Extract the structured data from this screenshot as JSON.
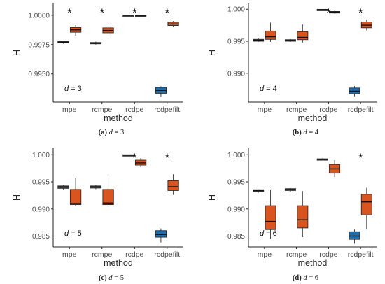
{
  "colors": {
    "blue": "#1f6fb0",
    "orange": "#d9541e",
    "dark": "#3c3c3c",
    "axis": "#222222",
    "text": "#2b2b2b"
  },
  "chart_data": [
    {
      "type": "boxplot",
      "caption_label": "(a)",
      "caption_text": "d = 3",
      "xlabel": "method",
      "ylabel": "H",
      "annotation": "d = 3",
      "ylim": [
        0.9926,
        1.001
      ],
      "yticks": [
        0.995,
        0.9975,
        1.0
      ],
      "ytick_labels": [
        "0.9950",
        "0.9975",
        "1.0000"
      ],
      "categories": [
        "mpe",
        "rcmpe",
        "rcdpe",
        "rcdpefilt"
      ],
      "boxes": [
        {
          "cat": "mpe",
          "color": "dark",
          "q1": 0.99764,
          "med": 0.9977,
          "q3": 0.99776,
          "wlo": 0.99758,
          "whi": 0.99782
        },
        {
          "cat": "mpe",
          "color": "orange",
          "q1": 0.99855,
          "med": 0.99875,
          "q3": 0.99895,
          "wlo": 0.99825,
          "whi": 0.99915
        },
        {
          "cat": "rcmpe",
          "color": "dark",
          "q1": 0.99756,
          "med": 0.99762,
          "q3": 0.99768,
          "wlo": 0.9975,
          "whi": 0.99775
        },
        {
          "cat": "rcmpe",
          "color": "orange",
          "q1": 0.9985,
          "med": 0.9987,
          "q3": 0.99892,
          "wlo": 0.99818,
          "whi": 0.9991
        },
        {
          "cat": "rcdpe",
          "color": "dark",
          "q1": 0.99998,
          "med": 1.0,
          "q3": 1.00002,
          "wlo": 0.99996,
          "whi": 1.00003
        },
        {
          "cat": "rcdpe",
          "color": "dark",
          "q1": 0.99996,
          "med": 0.99998,
          "q3": 1.0,
          "wlo": 0.99994,
          "whi": 1.00001
        },
        {
          "cat": "rcdpefilt",
          "color": "blue",
          "q1": 0.99335,
          "med": 0.9936,
          "q3": 0.99385,
          "wlo": 0.99305,
          "whi": 0.99395
        },
        {
          "cat": "rcdpefilt",
          "color": "orange",
          "q1": 0.99912,
          "med": 0.99925,
          "q3": 0.9994,
          "wlo": 0.999,
          "whi": 0.9995
        }
      ],
      "stars": [
        "mpe",
        "rcmpe",
        "rcdpe",
        "rcdpefilt"
      ]
    },
    {
      "type": "boxplot",
      "caption_label": "(b)",
      "caption_text": "d = 4",
      "xlabel": "method",
      "ylabel": "H",
      "annotation": "d = 4",
      "ylim": [
        0.9855,
        1.0009
      ],
      "yticks": [
        0.99,
        0.995,
        1.0
      ],
      "ytick_labels": [
        "0.990",
        "0.995",
        "1.000"
      ],
      "categories": [
        "mpe",
        "rcmpe",
        "rcdpe",
        "rcdpefilt"
      ],
      "boxes": [
        {
          "cat": "mpe",
          "color": "dark",
          "q1": 0.995,
          "med": 0.99515,
          "q3": 0.9953,
          "wlo": 0.9949,
          "whi": 0.99545
        },
        {
          "cat": "mpe",
          "color": "orange",
          "q1": 0.9953,
          "med": 0.9957,
          "q3": 0.9966,
          "wlo": 0.9949,
          "whi": 0.9979
        },
        {
          "cat": "rcmpe",
          "color": "dark",
          "q1": 0.995,
          "med": 0.99512,
          "q3": 0.99525,
          "wlo": 0.9949,
          "whi": 0.99535
        },
        {
          "cat": "rcmpe",
          "color": "orange",
          "q1": 0.99525,
          "med": 0.9956,
          "q3": 0.9965,
          "wlo": 0.9948,
          "whi": 0.9976
        },
        {
          "cat": "rcdpe",
          "color": "dark",
          "q1": 0.99982,
          "med": 0.9999,
          "q3": 0.99998,
          "wlo": 0.99975,
          "whi": 1.00002
        },
        {
          "cat": "rcdpe",
          "color": "dark",
          "q1": 0.9994,
          "med": 0.99955,
          "q3": 0.99965,
          "wlo": 0.9993,
          "whi": 0.99975
        },
        {
          "cat": "rcdpefilt",
          "color": "blue",
          "q1": 0.9868,
          "med": 0.9872,
          "q3": 0.9877,
          "wlo": 0.9864,
          "whi": 0.988
        },
        {
          "cat": "rcdpefilt",
          "color": "orange",
          "q1": 0.9971,
          "med": 0.9975,
          "q3": 0.998,
          "wlo": 0.9967,
          "whi": 0.9984
        }
      ],
      "stars": [
        "rcdpe",
        "rcdpefilt"
      ]
    },
    {
      "type": "boxplot",
      "caption_label": "(c)",
      "caption_text": "d = 5",
      "xlabel": "method",
      "ylabel": "H",
      "annotation": "d = 5",
      "ylim": [
        0.983,
        1.0012
      ],
      "yticks": [
        0.985,
        0.99,
        0.995,
        1.0
      ],
      "ytick_labels": [
        "0.985",
        "0.990",
        "0.995",
        "1.000"
      ],
      "categories": [
        "mpe",
        "rcmpe",
        "rcdpe",
        "rcdpefilt"
      ],
      "boxes": [
        {
          "cat": "mpe",
          "color": "dark",
          "q1": 0.9938,
          "med": 0.99405,
          "q3": 0.99425,
          "wlo": 0.9936,
          "whi": 0.9944
        },
        {
          "cat": "mpe",
          "color": "orange",
          "q1": 0.9908,
          "med": 0.991,
          "q3": 0.9936,
          "wlo": 0.9906,
          "whi": 0.9957
        },
        {
          "cat": "rcmpe",
          "color": "dark",
          "q1": 0.99385,
          "med": 0.99405,
          "q3": 0.99425,
          "wlo": 0.99365,
          "whi": 0.9944
        },
        {
          "cat": "rcmpe",
          "color": "orange",
          "q1": 0.9908,
          "med": 0.9911,
          "q3": 0.9936,
          "wlo": 0.9906,
          "whi": 0.9957
        },
        {
          "cat": "rcdpe",
          "color": "dark",
          "q1": 0.9999,
          "med": 0.99995,
          "q3": 1.0,
          "wlo": 0.99985,
          "whi": 1.00003
        },
        {
          "cat": "rcdpe",
          "color": "orange",
          "q1": 0.9981,
          "med": 0.9985,
          "q3": 0.999,
          "wlo": 0.9977,
          "whi": 0.9994
        },
        {
          "cat": "rcdpefilt",
          "color": "blue",
          "q1": 0.9848,
          "med": 0.9853,
          "q3": 0.986,
          "wlo": 0.9838,
          "whi": 0.9864
        },
        {
          "cat": "rcdpefilt",
          "color": "orange",
          "q1": 0.9934,
          "med": 0.9941,
          "q3": 0.9952,
          "wlo": 0.9926,
          "whi": 0.9964
        }
      ],
      "stars": [
        "rcdpe",
        "rcdpefilt"
      ]
    },
    {
      "type": "boxplot",
      "caption_label": "(d)",
      "caption_text": "d = 6",
      "xlabel": "method",
      "ylabel": "H",
      "annotation": "d = 6",
      "ylim": [
        0.983,
        1.0012
      ],
      "yticks": [
        0.985,
        0.99,
        0.995,
        1.0
      ],
      "ytick_labels": [
        "0.985",
        "0.990",
        "0.995",
        "1.000"
      ],
      "categories": [
        "mpe",
        "rcmpe",
        "rcdpe",
        "rcdpefilt"
      ],
      "boxes": [
        {
          "cat": "mpe",
          "color": "dark",
          "q1": 0.9932,
          "med": 0.9934,
          "q3": 0.99355,
          "wlo": 0.993,
          "whi": 0.99365
        },
        {
          "cat": "mpe",
          "color": "orange",
          "q1": 0.9862,
          "med": 0.9877,
          "q3": 0.9906,
          "wlo": 0.9845,
          "whi": 0.9936
        },
        {
          "cat": "rcmpe",
          "color": "dark",
          "q1": 0.9934,
          "med": 0.99355,
          "q3": 0.99375,
          "wlo": 0.9932,
          "whi": 0.99385
        },
        {
          "cat": "rcmpe",
          "color": "orange",
          "q1": 0.9865,
          "med": 0.988,
          "q3": 0.9906,
          "wlo": 0.9848,
          "whi": 0.9933
        },
        {
          "cat": "rcdpe",
          "color": "dark",
          "q1": 0.99905,
          "med": 0.99915,
          "q3": 0.99925,
          "wlo": 0.99895,
          "whi": 0.99935
        },
        {
          "cat": "rcdpe",
          "color": "orange",
          "q1": 0.9966,
          "med": 0.9974,
          "q3": 0.9982,
          "wlo": 0.9959,
          "whi": 0.999
        },
        {
          "cat": "rcdpefilt",
          "color": "blue",
          "q1": 0.9844,
          "med": 0.985,
          "q3": 0.9858,
          "wlo": 0.9836,
          "whi": 0.9862
        },
        {
          "cat": "rcdpefilt",
          "color": "orange",
          "q1": 0.9889,
          "med": 0.9913,
          "q3": 0.9927,
          "wlo": 0.9862,
          "whi": 0.9939
        }
      ],
      "stars": [
        "rcdpefilt"
      ]
    }
  ]
}
